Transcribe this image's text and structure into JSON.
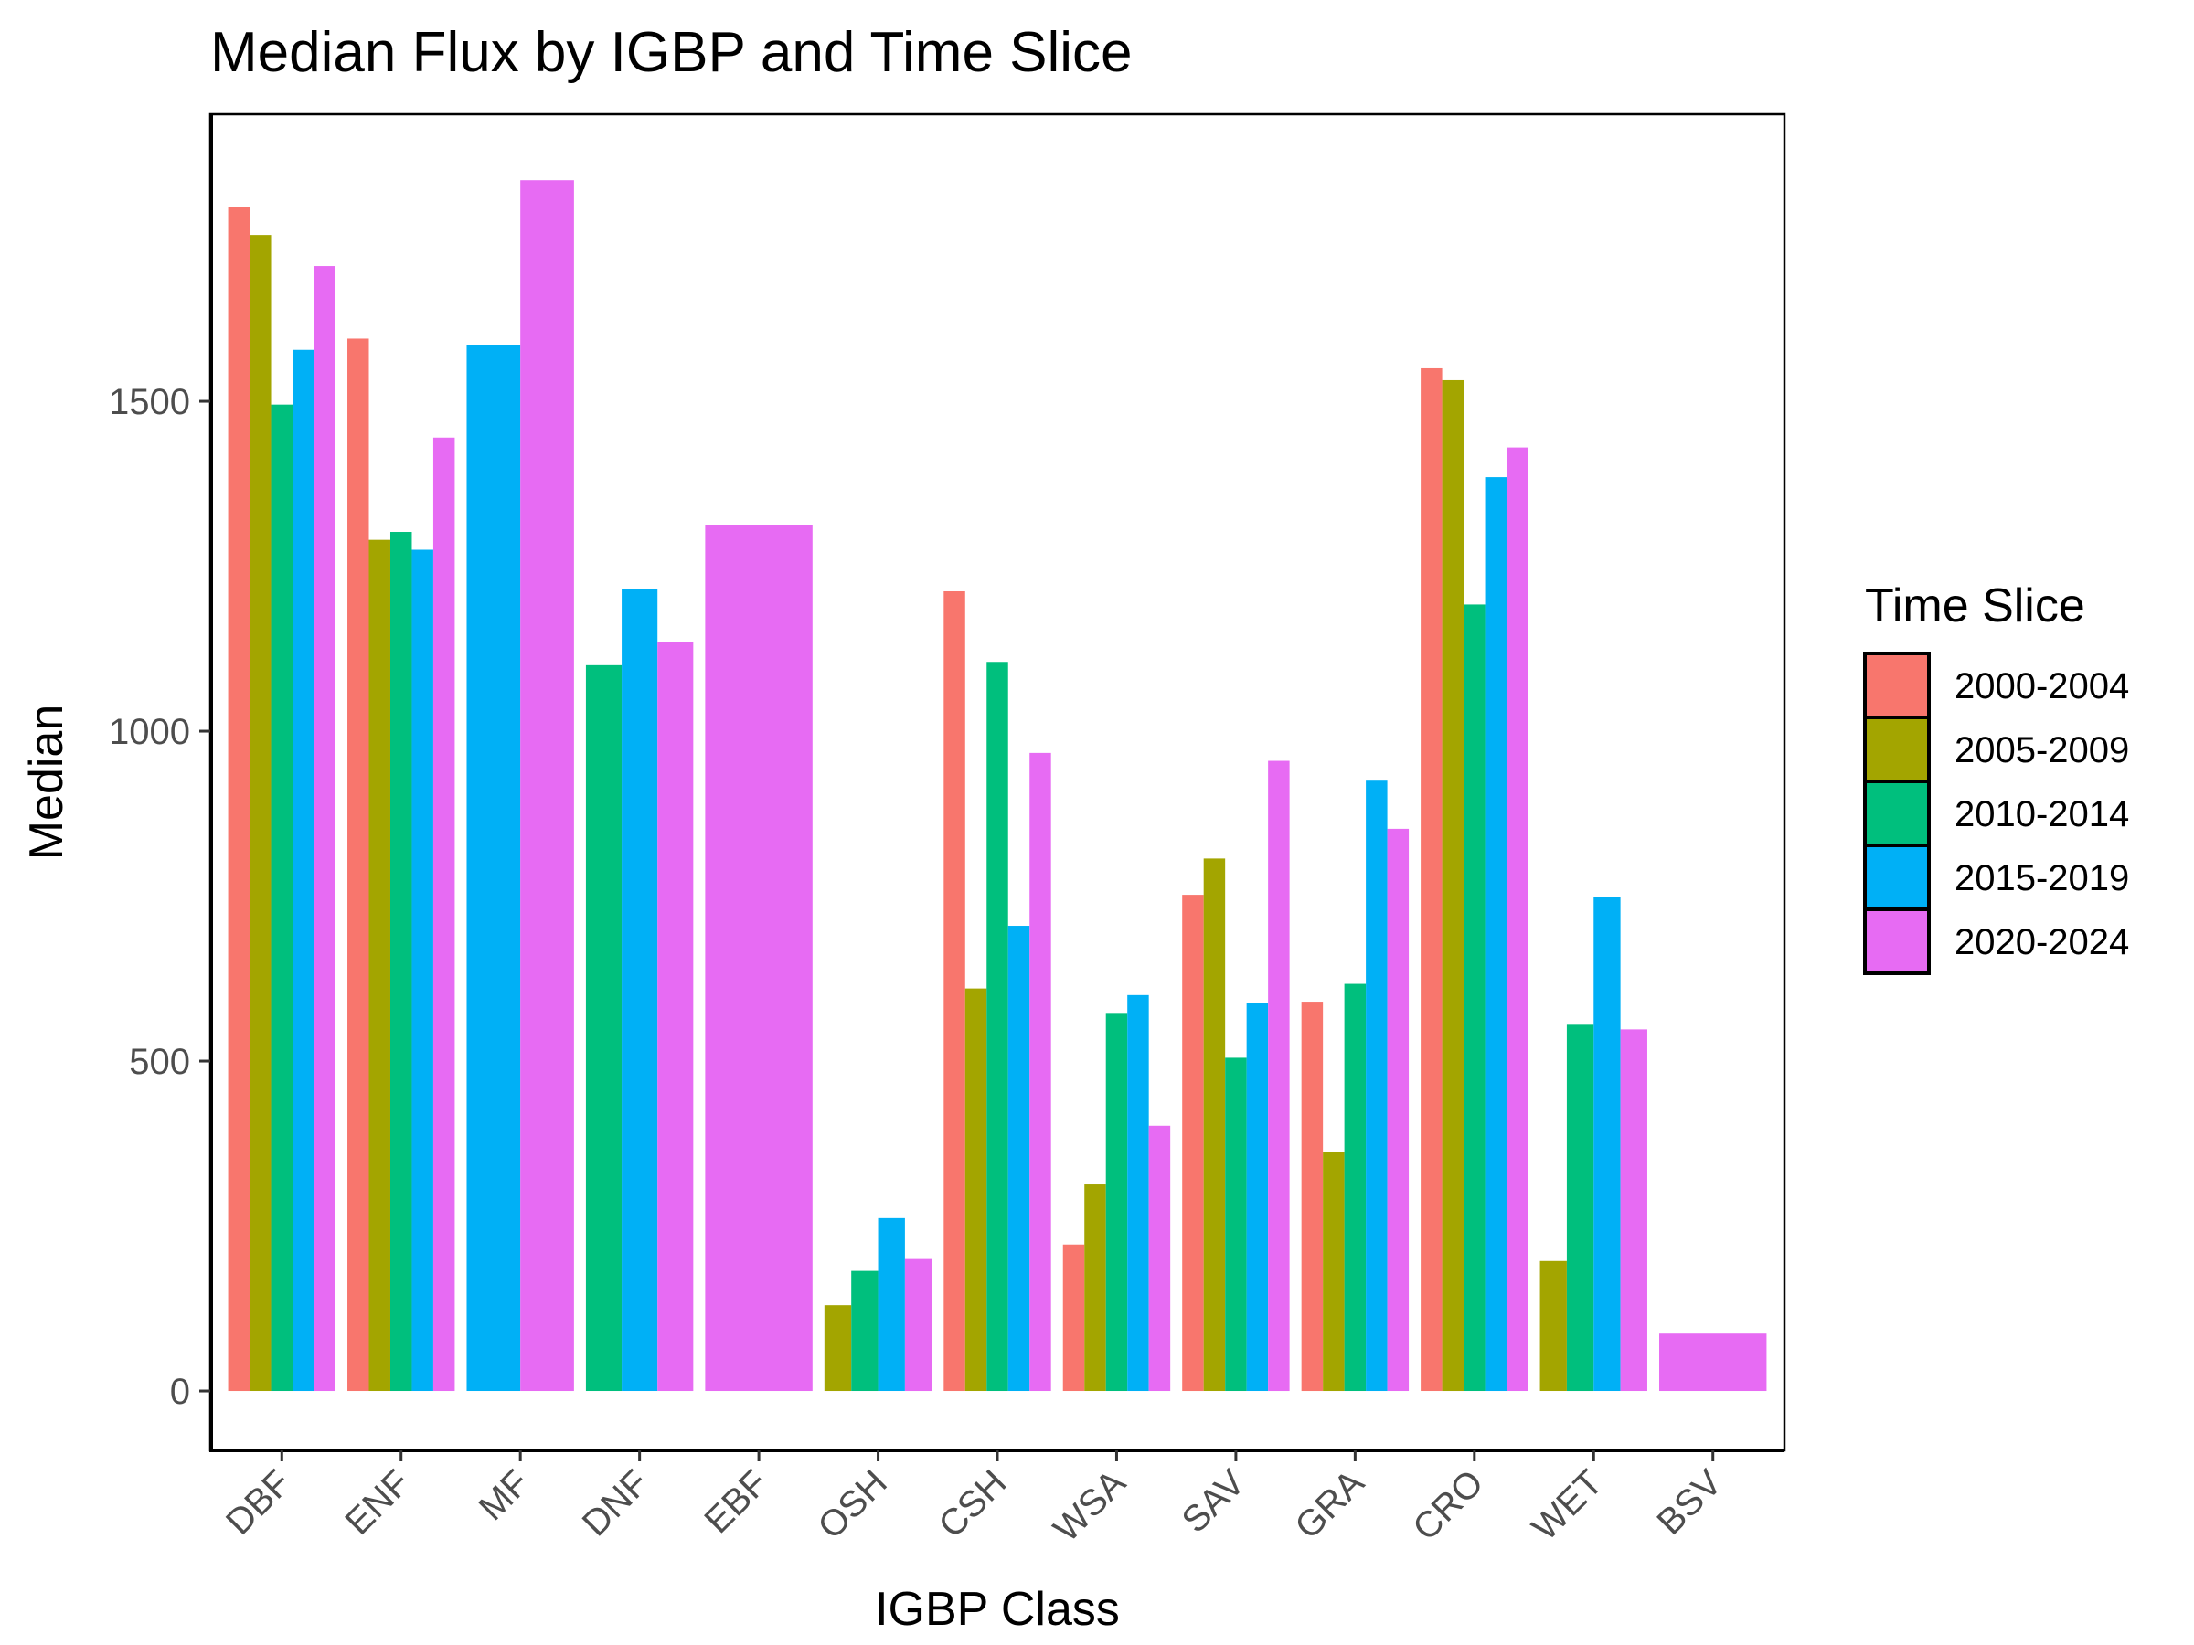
{
  "chart_data": {
    "type": "bar",
    "title": "Median Flux by IGBP and Time Slice",
    "xlabel": "IGBP Class",
    "ylabel": "Median",
    "ylim": [
      -90,
      1935
    ],
    "yticks": [
      0,
      500,
      1000,
      1500
    ],
    "legend_title": "Time Slice",
    "legend_position": "right",
    "grid": false,
    "categories": [
      "DBF",
      "ENF",
      "MF",
      "DNF",
      "EBF",
      "OSH",
      "CSH",
      "WSA",
      "SAV",
      "GRA",
      "CRO",
      "WET",
      "BSV"
    ],
    "series": [
      {
        "name": "2000-2004",
        "color": "#F8766D",
        "values": [
          1795,
          1595,
          null,
          null,
          null,
          null,
          1212,
          222,
          752,
          590,
          1550,
          null,
          null
        ]
      },
      {
        "name": "2005-2009",
        "color": "#A3A500",
        "values": [
          1752,
          1290,
          null,
          null,
          null,
          130,
          610,
          313,
          807,
          362,
          1532,
          197,
          null
        ]
      },
      {
        "name": "2010-2014",
        "color": "#00BF7D",
        "values": [
          1495,
          1302,
          null,
          1100,
          null,
          182,
          1105,
          573,
          505,
          617,
          1192,
          555,
          null
        ]
      },
      {
        "name": "2015-2019",
        "color": "#00B0F6",
        "values": [
          1578,
          1275,
          1585,
          1215,
          null,
          262,
          705,
          600,
          588,
          925,
          1385,
          748,
          null
        ]
      },
      {
        "name": "2020-2024",
        "color": "#E76BF3",
        "values": [
          1705,
          1445,
          1835,
          1135,
          1312,
          200,
          967,
          402,
          955,
          852,
          1430,
          548,
          87
        ]
      }
    ]
  }
}
